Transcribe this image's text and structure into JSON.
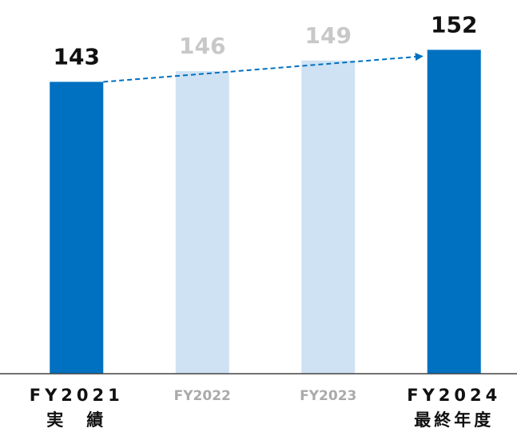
{
  "chart_data": {
    "type": "bar",
    "categories": [
      "FY2021",
      "FY2022",
      "FY2023",
      "FY2024"
    ],
    "category_sublabels": [
      "実　績",
      null,
      null,
      "最終年度"
    ],
    "values": [
      143,
      146,
      149,
      152
    ],
    "colors": [
      "#0070c0",
      "#cfe2f3",
      "#cfe2f3",
      "#0070c0"
    ],
    "label_colors": [
      "#111111",
      "#c8c8c8",
      "#c8c8c8",
      "#111111"
    ],
    "arrow_color": "#0070c0",
    "ylim": [
      61,
      166
    ]
  }
}
